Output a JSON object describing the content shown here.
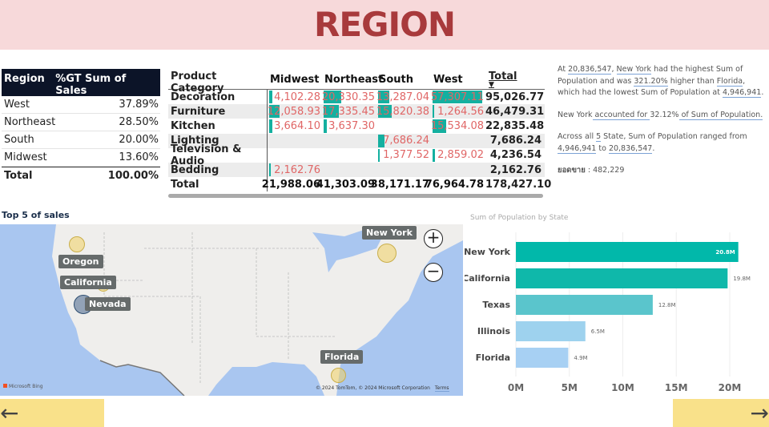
{
  "header": {
    "title": "REGION"
  },
  "region_table": {
    "headers": [
      "Region",
      "%GT Sum of Sales"
    ],
    "rows": [
      [
        "West",
        "37.89%"
      ],
      [
        "Northeast",
        "28.50%"
      ],
      [
        "South",
        "20.00%"
      ],
      [
        "Midwest",
        "13.60%"
      ]
    ],
    "total": [
      "Total",
      "100.00%"
    ]
  },
  "matrix": {
    "headers": [
      "Product Category",
      "Midwest",
      "Northeast",
      "South",
      "West",
      "Total"
    ],
    "rows": [
      {
        "cat": "Decoration",
        "v": [
          4102.28,
          20330.35,
          13287.04,
          57307.11
        ],
        "t": "4,102.28|20,330.35|13,287.04|57,307.11",
        "total": "95,026.77"
      },
      {
        "cat": "Furniture",
        "v": [
          12058.93,
          17335.45,
          15820.38,
          1264.56
        ],
        "t": "12,058.93|17,335.45|15,820.38|1,264.56",
        "total": "46,479.31"
      },
      {
        "cat": "Kitchen",
        "v": [
          3664.1,
          3637.3,
          null,
          15534.08
        ],
        "t": "3,664.10|3,637.30||15,534.08",
        "total": "22,835.48"
      },
      {
        "cat": "Lighting",
        "v": [
          null,
          null,
          7686.24,
          null
        ],
        "t": "||7,686.24|",
        "total": "7,686.24"
      },
      {
        "cat": "Television & Audio",
        "v": [
          null,
          null,
          1377.52,
          2859.02
        ],
        "t": "||1,377.52|2,859.02",
        "total": "4,236.54"
      },
      {
        "cat": "Bedding",
        "v": [
          2162.76,
          null,
          null,
          null
        ],
        "t": "2,162.76|||",
        "total": "2,162.76"
      }
    ],
    "total_row": [
      "Total",
      "21,988.06",
      "41,303.09",
      "38,171.17",
      "76,964.78",
      "178,427.10"
    ],
    "bar_color": "#14b0a0",
    "value_color": "#e06666"
  },
  "narrative": {
    "p1": [
      "At ",
      "20,836,547",
      ", ",
      "New York",
      " had the highest Sum of Population and was ",
      "321.20%",
      " higher than ",
      "Florida",
      ", which had the lowest Sum of Population at ",
      "4,946,941",
      "."
    ],
    "p2": [
      "New York",
      " accounted for ",
      "32.12%",
      " of Sum of Population."
    ],
    "p3": [
      "Across all ",
      "5",
      " State, Sum of Population ranged from ",
      "4,946,941",
      " to ",
      "20,836,547",
      "."
    ],
    "p4": [
      "ยอดขาย",
      " : ",
      "482,229"
    ]
  },
  "map": {
    "title": "Top 5 of sales",
    "labels": [
      "New York",
      "Oregon",
      "California",
      "Nevada",
      "Florida"
    ],
    "zoom_in": "+",
    "zoom_out": "−",
    "attribution": "© 2024 TomTom, © 2024 Microsoft Corporation",
    "terms": "Terms",
    "brand": "Microsoft Bing"
  },
  "chart_data": {
    "type": "bar",
    "orientation": "horizontal",
    "title": "Sum of Population by State",
    "categories": [
      "New York",
      "California",
      "Texas",
      "Illinois",
      "Florida"
    ],
    "values": [
      20.8,
      19.8,
      12.8,
      6.5,
      4.9
    ],
    "data_labels": [
      "20.8M",
      "19.8M",
      "12.8M",
      "6.5M",
      "4.9M"
    ],
    "xticks": [
      "0M",
      "5M",
      "10M",
      "15M",
      "20M"
    ],
    "xlim": [
      0,
      22
    ],
    "grid": true,
    "colors": [
      "#01b8aa",
      "#0fb8aa",
      "#5ac5cc",
      "#9ed2ee",
      "#a7d0f3"
    ]
  },
  "nav": {
    "back_icon": "arrow-left-icon",
    "next_icon": "arrow-right-icon",
    "back": "←",
    "next": "→"
  }
}
